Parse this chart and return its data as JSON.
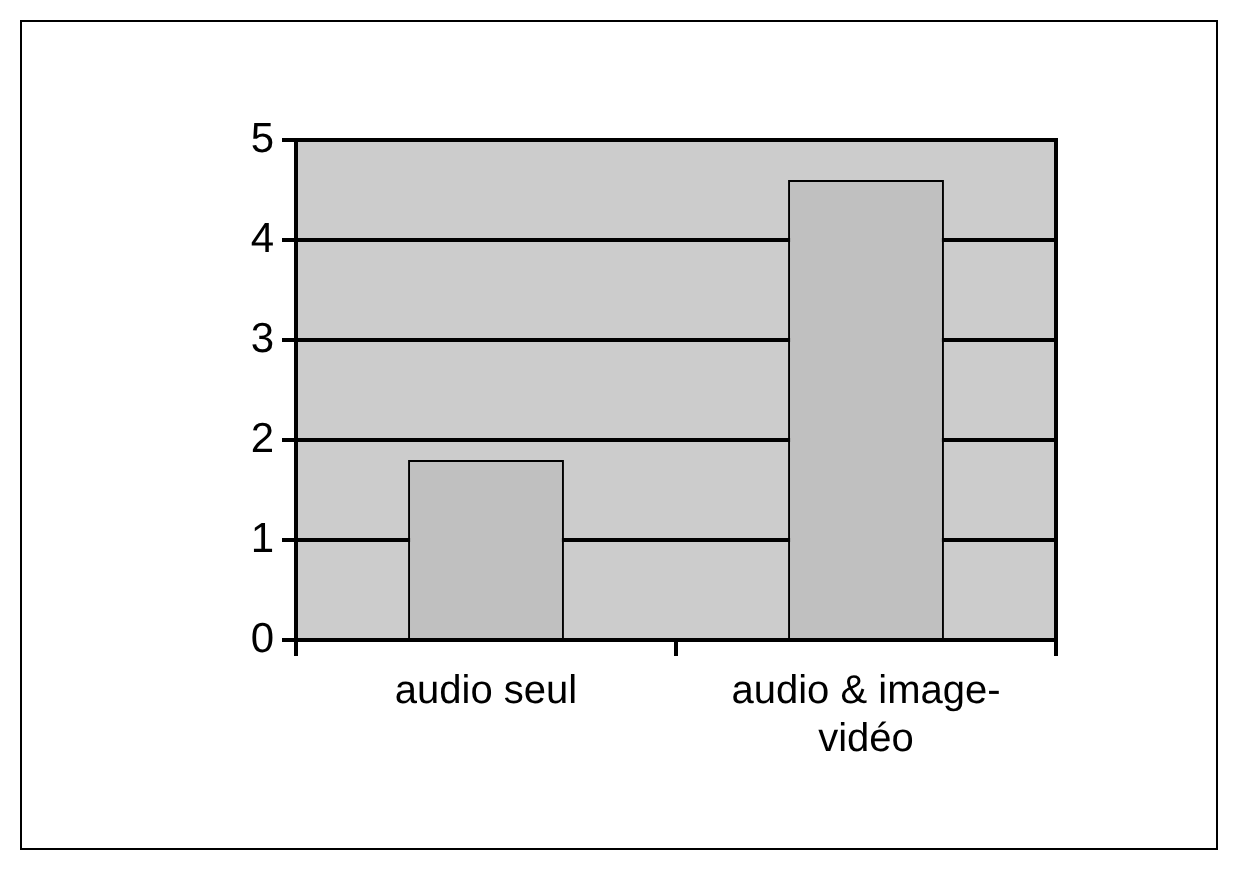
{
  "chart_data": {
    "type": "bar",
    "categories": [
      "audio seul",
      "audio & image-vidéo"
    ],
    "values": [
      1.8,
      4.6
    ],
    "color": "#c0c0c0",
    "ylim": [
      0,
      5
    ],
    "yticks": [
      0,
      1,
      2,
      3,
      4,
      5
    ],
    "grid": "y",
    "legend": false
  }
}
